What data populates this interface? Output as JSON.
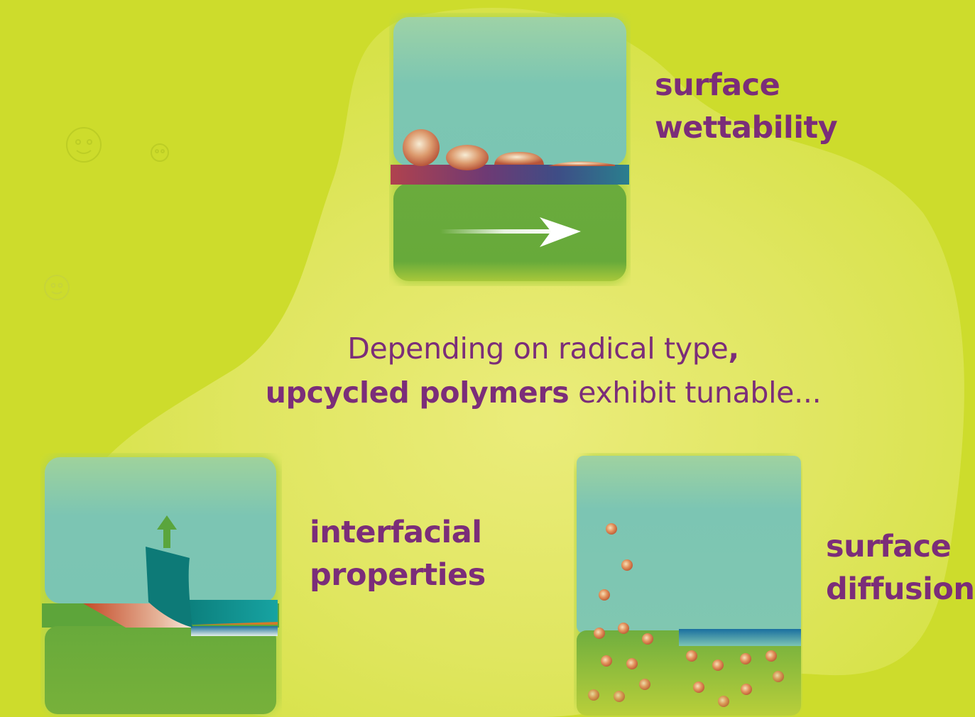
{
  "figure": {
    "caption": {
      "line1": "Depending on radical type",
      "line1_punct": ",",
      "line2_bold": "upcycled polymers",
      "line2_rest": " exhibit tunable..."
    },
    "panels": [
      {
        "id": "wettability",
        "label_line1": "surface",
        "label_line2": "wettability"
      },
      {
        "id": "interfacial",
        "label_line1": "interfacial",
        "label_line2": "properties"
      },
      {
        "id": "diffusion",
        "label_line1": "surface",
        "label_line2": "diffusion"
      }
    ]
  },
  "colors": {
    "background": "#cddc2c",
    "blob": "#e3e86a",
    "text": "#7b2d79",
    "water": "#7cc5b4",
    "substrate": "#6aaa3c",
    "droplet": "#d9855a"
  }
}
